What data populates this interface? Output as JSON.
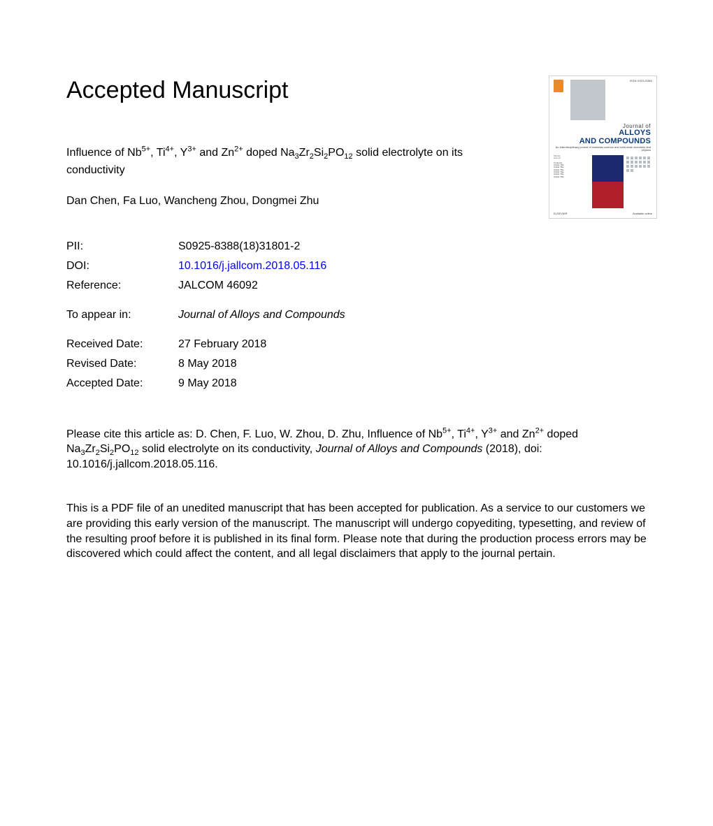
{
  "heading": "Accepted Manuscript",
  "title": {
    "prefix": "Influence of Nb",
    "sup1": "5+",
    "p2": ", Ti",
    "sup2": "4+",
    "p3": ", Y",
    "sup3": "3+",
    "p4": " and Zn",
    "sup4": "2+",
    "p5": " doped Na",
    "sub1": "3",
    "p6": "Zr",
    "sub2": "2",
    "p7": "Si",
    "sub3": "2",
    "p8": "PO",
    "sub4": "12",
    "suffix": " solid electrolyte on its conductivity"
  },
  "authors": "Dan Chen, Fa Luo, Wancheng Zhou, Dongmei Zhu",
  "meta": {
    "pii_label": "PII:",
    "pii_value": "S0925-8388(18)31801-2",
    "doi_label": "DOI:",
    "doi_value": "10.1016/j.jallcom.2018.05.116",
    "ref_label": "Reference:",
    "ref_value": "JALCOM 46092",
    "appear_label": "To appear in:",
    "appear_value": "Journal of Alloys and Compounds",
    "recv_label": "Received Date:",
    "recv_value": "27 February 2018",
    "rev_label": "Revised Date:",
    "rev_value": "8 May 2018",
    "acc_label": "Accepted Date:",
    "acc_value": "9 May 2018"
  },
  "citation": {
    "lead": "Please cite this article as: D. Chen, F. Luo, W. Zhou, D. Zhu, Influence of Nb",
    "sup1": "5+",
    "p2": ", Ti",
    "sup2": "4+",
    "p3": ", Y",
    "sup3": "3+",
    "p4": " and Zn",
    "sup4": "2+",
    "p5": " doped Na",
    "sub1": "3",
    "p6": "Zr",
    "sub2": "2",
    "p7": "Si",
    "sub3": "2",
    "p8": "PO",
    "sub4": "12",
    "mid": " solid electrolyte on its conductivity, ",
    "journal": "Journal of Alloys and Compounds",
    "tail": " (2018), doi: 10.1016/j.jallcom.2018.05.116."
  },
  "disclaimer": "This is a PDF file of an unedited manuscript that has been accepted for publication. As a service to our customers we are providing this early version of the manuscript. The manuscript will undergo copyediting, typesetting, and review of the resulting proof before it is published in its final form. Please note that during the production process errors may be discovered which could affect the content, and all legal disclaimers that apply to the journal pertain.",
  "cover": {
    "journal_small": "Journal of",
    "journal_big1": "ALLOYS",
    "journal_big2": "AND COMPOUNDS",
    "colors": {
      "navy": "#1a2a6c",
      "red": "#b0202a",
      "title_blue": "#0a3a7a",
      "gray": "#c2c7cc",
      "elsevier_orange": "#e88a2a"
    }
  }
}
